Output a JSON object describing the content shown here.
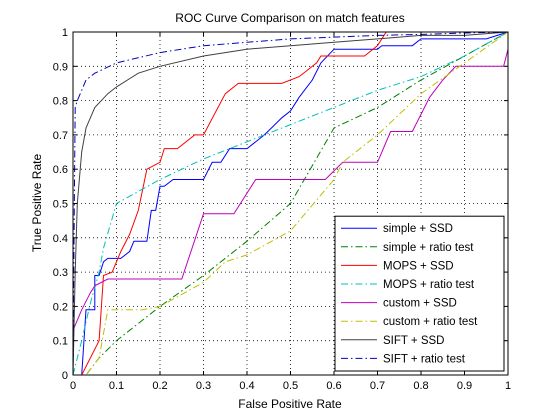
{
  "chart_data": {
    "type": "line",
    "title": "ROC Curve Comparison on match features",
    "xlabel": "False Positive Rate",
    "ylabel": "True Positive Rate",
    "xlim": [
      0,
      1
    ],
    "ylim": [
      0,
      1
    ],
    "xticks": [
      "0",
      "0.1",
      "0.2",
      "0.3",
      "0.4",
      "0.5",
      "0.6",
      "0.7",
      "0.8",
      "0.9",
      "1"
    ],
    "yticks": [
      "0",
      "0.1",
      "0.2",
      "0.3",
      "0.4",
      "0.5",
      "0.6",
      "0.7",
      "0.8",
      "0.9",
      "1"
    ],
    "grid": true,
    "legend_position": "bottom-right",
    "series": [
      {
        "name": "simple + SSD",
        "color": "#0000ff",
        "dash": "solid",
        "points": [
          [
            0,
            0
          ],
          [
            0.02,
            0
          ],
          [
            0.03,
            0.19
          ],
          [
            0.05,
            0.19
          ],
          [
            0.05,
            0.29
          ],
          [
            0.06,
            0.29
          ],
          [
            0.07,
            0.33
          ],
          [
            0.08,
            0.34
          ],
          [
            0.11,
            0.34
          ],
          [
            0.13,
            0.36
          ],
          [
            0.14,
            0.39
          ],
          [
            0.17,
            0.39
          ],
          [
            0.18,
            0.48
          ],
          [
            0.19,
            0.48
          ],
          [
            0.2,
            0.55
          ],
          [
            0.21,
            0.55
          ],
          [
            0.23,
            0.57
          ],
          [
            0.3,
            0.57
          ],
          [
            0.32,
            0.62
          ],
          [
            0.34,
            0.62
          ],
          [
            0.36,
            0.66
          ],
          [
            0.4,
            0.66
          ],
          [
            0.44,
            0.7
          ],
          [
            0.48,
            0.75
          ],
          [
            0.5,
            0.77
          ],
          [
            0.52,
            0.81
          ],
          [
            0.55,
            0.86
          ],
          [
            0.57,
            0.91
          ],
          [
            0.6,
            0.95
          ],
          [
            0.7,
            0.95
          ],
          [
            0.71,
            0.96
          ],
          [
            0.78,
            0.96
          ],
          [
            0.8,
            0.98
          ],
          [
            0.95,
            0.98
          ],
          [
            1,
            1
          ]
        ]
      },
      {
        "name": "simple + ratio test",
        "color": "#008000",
        "dash": "dashdot",
        "points": [
          [
            0,
            0
          ],
          [
            0.03,
            0
          ],
          [
            0.06,
            0.05
          ],
          [
            0.1,
            0.1
          ],
          [
            0.2,
            0.2
          ],
          [
            0.3,
            0.29
          ],
          [
            0.4,
            0.39
          ],
          [
            0.5,
            0.5
          ],
          [
            0.6,
            0.72
          ],
          [
            0.7,
            0.78
          ],
          [
            0.8,
            0.86
          ],
          [
            0.9,
            0.93
          ],
          [
            1,
            1
          ]
        ]
      },
      {
        "name": "MOPS + SSD",
        "color": "#ff0000",
        "dash": "solid",
        "points": [
          [
            0,
            0
          ],
          [
            0.02,
            0
          ],
          [
            0.06,
            0.1
          ],
          [
            0.07,
            0.29
          ],
          [
            0.09,
            0.3
          ],
          [
            0.11,
            0.36
          ],
          [
            0.13,
            0.41
          ],
          [
            0.15,
            0.48
          ],
          [
            0.17,
            0.6
          ],
          [
            0.2,
            0.62
          ],
          [
            0.21,
            0.66
          ],
          [
            0.24,
            0.66
          ],
          [
            0.28,
            0.7
          ],
          [
            0.3,
            0.7
          ],
          [
            0.35,
            0.82
          ],
          [
            0.38,
            0.85
          ],
          [
            0.48,
            0.85
          ],
          [
            0.52,
            0.87
          ],
          [
            0.56,
            0.91
          ],
          [
            0.57,
            0.93
          ],
          [
            0.6,
            0.93
          ],
          [
            0.67,
            0.93
          ],
          [
            0.7,
            0.96
          ],
          [
            0.72,
            1
          ],
          [
            1,
            1
          ]
        ]
      },
      {
        "name": "MOPS + ratio test",
        "color": "#00bfbf",
        "dash": "dashdot",
        "points": [
          [
            0,
            0
          ],
          [
            0.02,
            0.1
          ],
          [
            0.04,
            0.21
          ],
          [
            0.06,
            0.3
          ],
          [
            0.07,
            0.37
          ],
          [
            0.1,
            0.5
          ],
          [
            0.2,
            0.57
          ],
          [
            0.3,
            0.63
          ],
          [
            0.4,
            0.68
          ],
          [
            0.5,
            0.73
          ],
          [
            0.6,
            0.78
          ],
          [
            0.7,
            0.83
          ],
          [
            0.8,
            0.87
          ],
          [
            0.9,
            0.93
          ],
          [
            1,
            1
          ]
        ]
      },
      {
        "name": "custom + SSD",
        "color": "#bf00bf",
        "dash": "solid",
        "points": [
          [
            0,
            0.13
          ],
          [
            0.02,
            0.19
          ],
          [
            0.04,
            0.24
          ],
          [
            0.05,
            0.26
          ],
          [
            0.08,
            0.28
          ],
          [
            0.25,
            0.28
          ],
          [
            0.3,
            0.47
          ],
          [
            0.37,
            0.47
          ],
          [
            0.42,
            0.57
          ],
          [
            0.58,
            0.57
          ],
          [
            0.62,
            0.62
          ],
          [
            0.7,
            0.62
          ],
          [
            0.73,
            0.71
          ],
          [
            0.78,
            0.71
          ],
          [
            0.82,
            0.81
          ],
          [
            0.85,
            0.86
          ],
          [
            0.88,
            0.9
          ],
          [
            0.99,
            0.9
          ],
          [
            1,
            0.95
          ]
        ]
      },
      {
        "name": "custom + ratio test",
        "color": "#bfbf00",
        "dash": "dashdot",
        "points": [
          [
            0,
            0
          ],
          [
            0.03,
            0
          ],
          [
            0.06,
            0.05
          ],
          [
            0.08,
            0.19
          ],
          [
            0.16,
            0.19
          ],
          [
            0.2,
            0.2
          ],
          [
            0.3,
            0.27
          ],
          [
            0.35,
            0.33
          ],
          [
            0.4,
            0.35
          ],
          [
            0.5,
            0.42
          ],
          [
            0.6,
            0.57
          ],
          [
            0.62,
            0.62
          ],
          [
            0.7,
            0.7
          ],
          [
            0.8,
            0.82
          ],
          [
            0.9,
            0.91
          ],
          [
            1,
            1
          ]
        ]
      },
      {
        "name": "SIFT + SSD",
        "color": "#404040",
        "dash": "solid",
        "points": [
          [
            0,
            0
          ],
          [
            0.005,
            0.3
          ],
          [
            0.01,
            0.5
          ],
          [
            0.02,
            0.65
          ],
          [
            0.03,
            0.72
          ],
          [
            0.05,
            0.78
          ],
          [
            0.08,
            0.82
          ],
          [
            0.1,
            0.84
          ],
          [
            0.15,
            0.88
          ],
          [
            0.2,
            0.9
          ],
          [
            0.3,
            0.93
          ],
          [
            0.4,
            0.95
          ],
          [
            0.5,
            0.96
          ],
          [
            0.6,
            0.97
          ],
          [
            0.7,
            0.98
          ],
          [
            0.8,
            0.99
          ],
          [
            0.9,
            0.99
          ],
          [
            1,
            1
          ]
        ]
      },
      {
        "name": "SIFT + ratio test",
        "color": "#0000bf",
        "dash": "dashdot",
        "points": [
          [
            0,
            0
          ],
          [
            0.003,
            0.5
          ],
          [
            0.005,
            0.78
          ],
          [
            0.01,
            0.8
          ],
          [
            0.02,
            0.83
          ],
          [
            0.03,
            0.86
          ],
          [
            0.05,
            0.88
          ],
          [
            0.1,
            0.91
          ],
          [
            0.2,
            0.94
          ],
          [
            0.3,
            0.96
          ],
          [
            0.4,
            0.97
          ],
          [
            0.5,
            0.98
          ],
          [
            0.6,
            0.985
          ],
          [
            0.7,
            0.99
          ],
          [
            0.8,
            0.993
          ],
          [
            0.9,
            0.997
          ],
          [
            1,
            1
          ]
        ]
      }
    ]
  }
}
